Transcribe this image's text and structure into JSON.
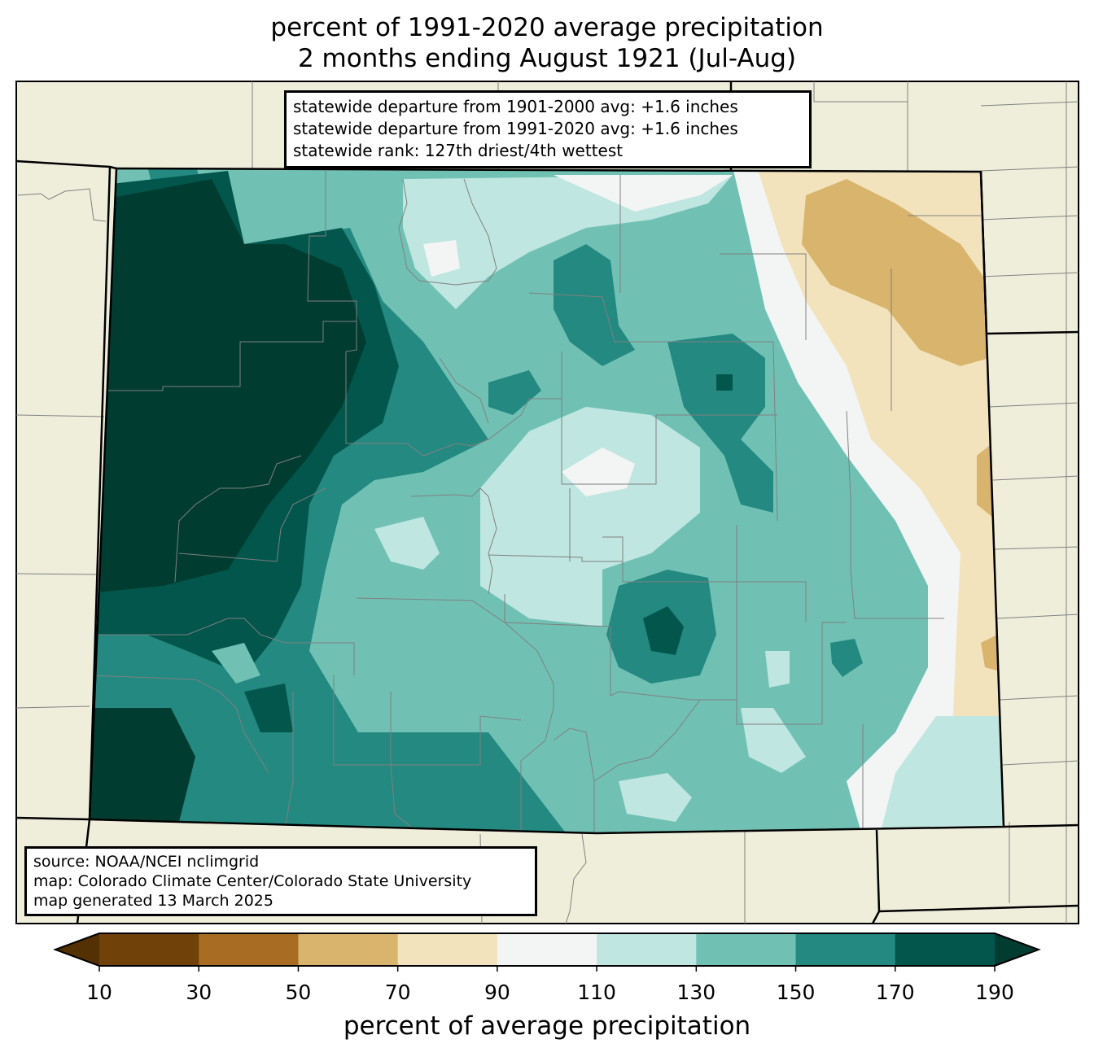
{
  "title": {
    "line1": "percent of 1991-2020 average precipitation",
    "line2": "2 months ending August 1921 (Jul-Aug)"
  },
  "stats": {
    "line1": "statewide departure from 1901-2000 avg: +1.6 inches",
    "line2": "statewide departure from 1991-2020 avg: +1.6 inches",
    "line3": "statewide rank: 127th driest/4th wettest"
  },
  "source": {
    "line1": "source: NOAA/NCEI nclimgrid",
    "line2": "map: Colorado Climate Center/Colorado State University",
    "line3": "map generated 13 March 2025"
  },
  "colorbar": {
    "label": "percent of average precipitation",
    "ticks": [
      "10",
      "30",
      "50",
      "70",
      "90",
      "110",
      "130",
      "150",
      "170",
      "190"
    ],
    "under_color": "#543005",
    "over_color": "#003c30",
    "bins": [
      {
        "range": "10-30",
        "color": "#704108"
      },
      {
        "range": "30-50",
        "color": "#a86d22"
      },
      {
        "range": "50-70",
        "color": "#d8b46c"
      },
      {
        "range": "70-90",
        "color": "#f2e3bc"
      },
      {
        "range": "90-110",
        "color": "#f3f5f4"
      },
      {
        "range": "110-130",
        "color": "#bfe6e0"
      },
      {
        "range": "130-150",
        "color": "#70c1b4"
      },
      {
        "range": "150-170",
        "color": "#238981"
      },
      {
        "range": "170-190",
        "color": "#02564c"
      }
    ]
  },
  "map": {
    "background_color": "#efeedb",
    "state_border_color": "#000000",
    "county_line_color": "#808080"
  }
}
